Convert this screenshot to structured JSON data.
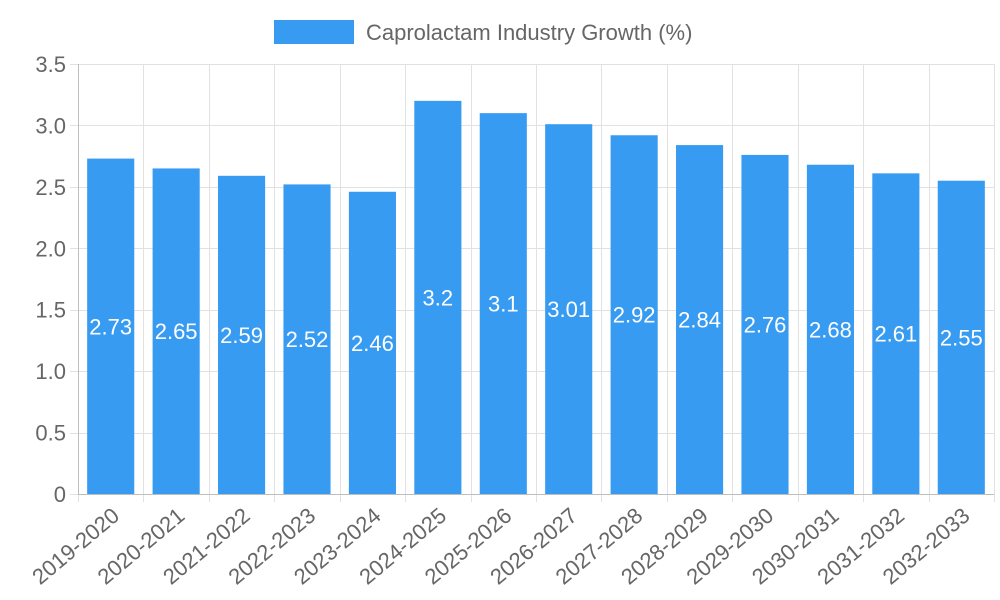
{
  "chart_data": {
    "type": "bar",
    "title": "",
    "xlabel": "",
    "ylabel": "",
    "categories": [
      "2019-2020",
      "2020-2021",
      "2021-2022",
      "2022-2023",
      "2023-2024",
      "2024-2025",
      "2025-2026",
      "2026-2027",
      "2027-2028",
      "2028-2029",
      "2029-2030",
      "2030-2031",
      "2031-2032",
      "2032-2033"
    ],
    "series": [
      {
        "name": "Caprolactam Industry Growth (%)",
        "values": [
          2.73,
          2.65,
          2.59,
          2.52,
          2.46,
          3.2,
          3.1,
          3.01,
          2.92,
          2.84,
          2.76,
          2.68,
          2.61,
          2.55
        ],
        "color": "#389bf2"
      }
    ],
    "ylim": [
      0,
      3.5
    ],
    "yticks": [
      "0",
      "0.5",
      "1.0",
      "1.5",
      "2.0",
      "2.5",
      "3.0",
      "3.5"
    ],
    "legend_position": "top",
    "grid": true,
    "data_labels": [
      "2.73",
      "2.65",
      "2.59",
      "2.52",
      "2.46",
      "3.2",
      "3.1",
      "3.01",
      "2.92",
      "2.84",
      "2.76",
      "2.68",
      "2.61",
      "2.55"
    ]
  },
  "colors": {
    "bar": "#389bf2",
    "grid": "#e1e1e1",
    "axis": "#bdbdbd",
    "text": "#666666",
    "label": "#ffffff"
  }
}
